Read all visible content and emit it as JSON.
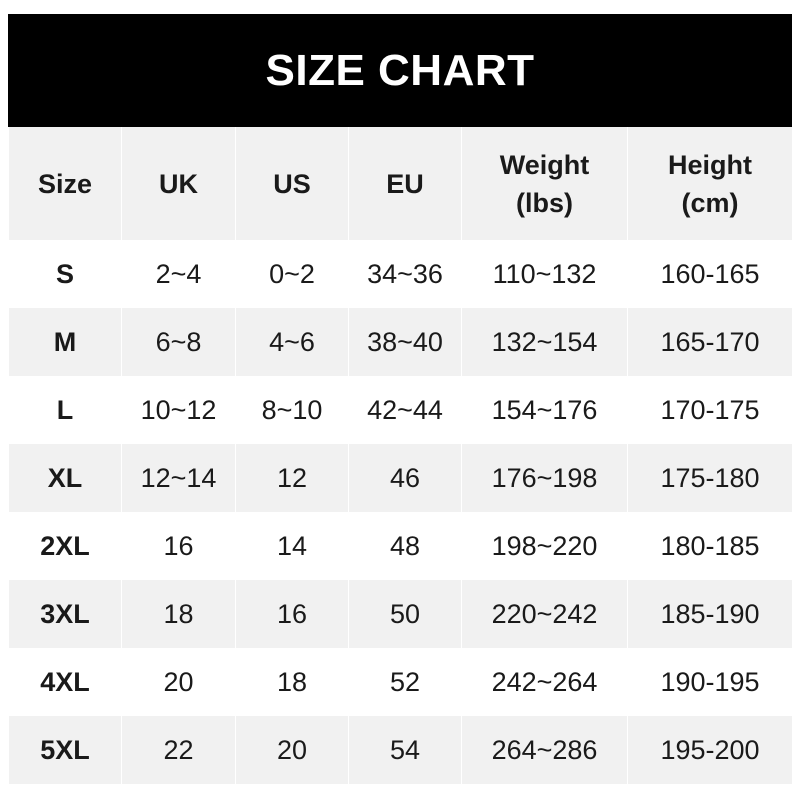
{
  "title": "SIZE CHART",
  "chart_data": {
    "type": "table",
    "title": "SIZE CHART",
    "columns": [
      "Size",
      "UK",
      "US",
      "EU",
      "Weight\n(lbs)",
      "Height\n(cm)"
    ],
    "rows": [
      [
        "S",
        "2~4",
        "0~2",
        "34~36",
        "110~132",
        "160-165"
      ],
      [
        "M",
        "6~8",
        "4~6",
        "38~40",
        "132~154",
        "165-170"
      ],
      [
        "L",
        "10~12",
        "8~10",
        "42~44",
        "154~176",
        "170-175"
      ],
      [
        "XL",
        "12~14",
        "12",
        "46",
        "176~198",
        "175-180"
      ],
      [
        "2XL",
        "16",
        "14",
        "48",
        "198~220",
        "180-185"
      ],
      [
        "3XL",
        "18",
        "16",
        "50",
        "220~242",
        "185-190"
      ],
      [
        "4XL",
        "20",
        "18",
        "52",
        "242~264",
        "190-195"
      ],
      [
        "5XL",
        "22",
        "20",
        "54",
        "264~286",
        "195-200"
      ]
    ]
  },
  "colors": {
    "header_bg": "#000000",
    "header_text": "#ffffff",
    "stripe": "#f1f1f1",
    "text": "#1a1a1a"
  }
}
